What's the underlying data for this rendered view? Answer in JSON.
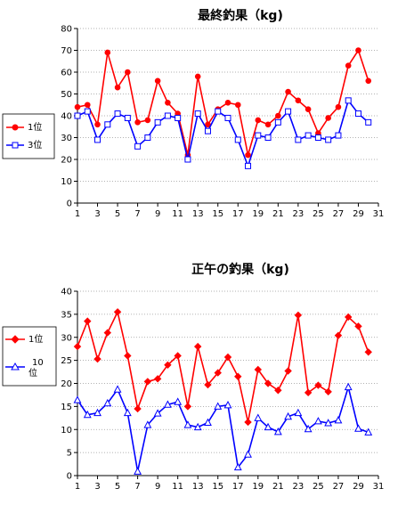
{
  "chart_data": [
    {
      "type": "line",
      "title": "最終釣果（kg)",
      "x": [
        1,
        2,
        3,
        4,
        5,
        6,
        7,
        8,
        9,
        10,
        11,
        12,
        13,
        14,
        15,
        16,
        17,
        18,
        19,
        20,
        21,
        22,
        23,
        24,
        25,
        26,
        27,
        28,
        29,
        30
      ],
      "xticks": [
        1,
        3,
        5,
        7,
        9,
        11,
        13,
        15,
        17,
        19,
        21,
        23,
        25,
        27,
        29,
        31
      ],
      "xlim": [
        1,
        31
      ],
      "ylim": [
        0,
        80
      ],
      "yticks": [
        0,
        10,
        20,
        30,
        40,
        50,
        60,
        70,
        80
      ],
      "grid": true,
      "legend_position": "left",
      "series": [
        {
          "name": "1位",
          "color": "#ff0000",
          "marker": "circle-filled",
          "values": [
            44,
            45,
            36,
            69,
            53,
            60,
            37,
            38,
            56,
            46,
            41,
            22,
            58,
            36,
            43,
            46,
            45,
            22,
            38,
            36,
            40,
            51,
            47,
            43,
            32,
            39,
            44,
            63,
            70,
            56
          ]
        },
        {
          "name": "3位",
          "color": "#0000ff",
          "marker": "square-open",
          "values": [
            40,
            42,
            29,
            36,
            41,
            39,
            26,
            30,
            37,
            40,
            39,
            20,
            41,
            33,
            42,
            39,
            29,
            17,
            31,
            30,
            37,
            42,
            29,
            31,
            30,
            29,
            31,
            47,
            41,
            37
          ]
        }
      ]
    },
    {
      "type": "line",
      "title": "正午の釣果（kg)",
      "x": [
        1,
        2,
        3,
        4,
        5,
        6,
        7,
        8,
        9,
        10,
        11,
        12,
        13,
        14,
        15,
        16,
        17,
        18,
        19,
        20,
        21,
        22,
        23,
        24,
        25,
        26,
        27,
        28,
        29,
        30
      ],
      "xticks": [
        1,
        3,
        5,
        7,
        9,
        11,
        13,
        15,
        17,
        19,
        21,
        23,
        25,
        27,
        29,
        31
      ],
      "xlim": [
        1,
        31
      ],
      "ylim": [
        0,
        40
      ],
      "yticks": [
        0,
        5,
        10,
        15,
        20,
        25,
        30,
        35,
        40
      ],
      "grid": true,
      "legend_position": "left",
      "series": [
        {
          "name": "1位",
          "color": "#ff0000",
          "marker": "diamond-filled",
          "values": [
            28,
            33.5,
            25.3,
            31,
            35.5,
            26,
            14.5,
            20.4,
            21,
            24,
            26,
            15,
            28,
            19.7,
            22.3,
            25.7,
            21.5,
            11.6,
            23,
            20,
            18.5,
            22.7,
            34.8,
            18,
            19.6,
            18.2,
            30.4,
            34.4,
            32.4,
            26.8
          ]
        },
        {
          "name": "10\n位",
          "color": "#0000ff",
          "marker": "triangle-open",
          "values": [
            16.4,
            13.2,
            13.6,
            15.7,
            18.7,
            13.6,
            0.9,
            11,
            13.5,
            15.4,
            16,
            11,
            10.5,
            11.5,
            15,
            15.3,
            1.8,
            4.6,
            12.5,
            10.5,
            9.5,
            12.8,
            13.6,
            10.1,
            11.8,
            11.4,
            12,
            19.2,
            10.2,
            9.4
          ]
        }
      ]
    }
  ]
}
